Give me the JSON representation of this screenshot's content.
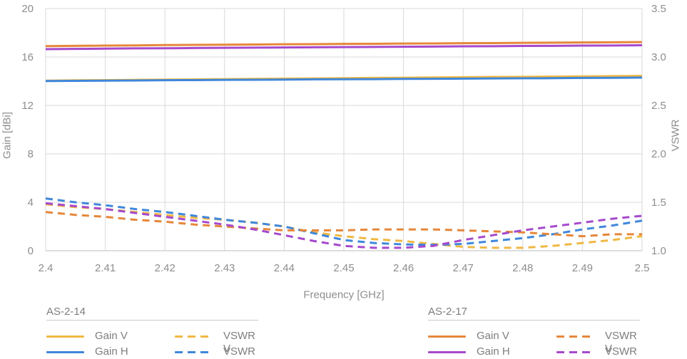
{
  "chart": {
    "y_left": {
      "title": "Gain [dBi]",
      "ticks": [
        "20",
        "16",
        "12",
        "8",
        "4",
        "0"
      ]
    },
    "y_right": {
      "title": "VSWR",
      "ticks": [
        "3.5",
        "3.0",
        "2.5",
        "2.0",
        "1.5",
        "1.0"
      ]
    },
    "x_axis": {
      "title": "Frequency [GHz]",
      "ticks": [
        "2.4",
        "2.41",
        "2.42",
        "2.43",
        "2.44",
        "2.45",
        "2.46",
        "2.47",
        "2.48",
        "2.49",
        "2.5"
      ]
    }
  },
  "colors": {
    "yellow": "#F0B843",
    "blue": "#3F87DB",
    "orange": "#E6873B",
    "purple": "#A649CC",
    "grid": "#D9D9D9",
    "axis_line": "#BDBDBD",
    "tick_text": "#8E8E8E"
  },
  "chart_data": {
    "type": "line",
    "xlabel": "Frequency [GHz]",
    "ylabel_left": "Gain [dBi]",
    "ylabel_right": "VSWR",
    "xlim": [
      2.4,
      2.5
    ],
    "gain_ylim": [
      0,
      20
    ],
    "vswr_ylim": [
      1.0,
      3.5
    ],
    "grid": true,
    "legend_position": "bottom",
    "x": [
      2.4,
      2.405,
      2.41,
      2.415,
      2.42,
      2.425,
      2.43,
      2.435,
      2.44,
      2.445,
      2.45,
      2.455,
      2.46,
      2.465,
      2.47,
      2.475,
      2.48,
      2.485,
      2.49,
      2.495,
      2.5
    ],
    "series": [
      {
        "name": "AS-2-14 Gain V",
        "group": "AS-2-14",
        "axis": "gain",
        "style": "solid",
        "color": "#F0B843",
        "values": [
          14.05,
          14.07,
          14.09,
          14.11,
          14.13,
          14.15,
          14.17,
          14.19,
          14.21,
          14.23,
          14.25,
          14.27,
          14.29,
          14.31,
          14.33,
          14.35,
          14.36,
          14.38,
          14.4,
          14.42,
          14.44
        ]
      },
      {
        "name": "AS-2-14 Gain H",
        "group": "AS-2-14",
        "axis": "gain",
        "style": "solid",
        "color": "#3F87DB",
        "values": [
          14.02,
          14.03,
          14.05,
          14.06,
          14.08,
          14.09,
          14.11,
          14.12,
          14.13,
          14.15,
          14.16,
          14.17,
          14.19,
          14.2,
          14.21,
          14.23,
          14.24,
          14.25,
          14.27,
          14.28,
          14.3
        ]
      },
      {
        "name": "AS-2-17 Gain V",
        "group": "AS-2-17",
        "axis": "gain",
        "style": "solid",
        "color": "#E6873B",
        "values": [
          16.9,
          16.92,
          16.94,
          16.96,
          16.98,
          17.0,
          17.01,
          17.03,
          17.05,
          17.06,
          17.08,
          17.09,
          17.11,
          17.12,
          17.14,
          17.15,
          17.17,
          17.18,
          17.2,
          17.21,
          17.23
        ]
      },
      {
        "name": "AS-2-17 Gain H",
        "group": "AS-2-17",
        "axis": "gain",
        "style": "solid",
        "color": "#A649CC",
        "values": [
          16.65,
          16.67,
          16.69,
          16.71,
          16.72,
          16.74,
          16.76,
          16.77,
          16.79,
          16.8,
          16.82,
          16.83,
          16.85,
          16.86,
          16.88,
          16.89,
          16.91,
          16.92,
          16.94,
          16.95,
          16.97
        ]
      },
      {
        "name": "AS-2-14 VSWR V",
        "group": "AS-2-14",
        "axis": "vswr",
        "style": "dashed",
        "color": "#F0B843",
        "values": [
          1.48,
          1.45,
          1.43,
          1.4,
          1.37,
          1.34,
          1.32,
          1.29,
          1.25,
          1.19,
          1.15,
          1.12,
          1.1,
          1.07,
          1.04,
          1.03,
          1.03,
          1.05,
          1.08,
          1.11,
          1.15
        ]
      },
      {
        "name": "AS-2-14 VSWR H",
        "group": "AS-2-14",
        "axis": "vswr",
        "style": "dashed",
        "color": "#3F87DB",
        "values": [
          1.54,
          1.5,
          1.47,
          1.43,
          1.4,
          1.36,
          1.32,
          1.29,
          1.25,
          1.18,
          1.11,
          1.08,
          1.065,
          1.06,
          1.07,
          1.1,
          1.13,
          1.17,
          1.22,
          1.26,
          1.31
        ]
      },
      {
        "name": "AS-2-17 VSWR V",
        "group": "AS-2-17",
        "axis": "vswr",
        "style": "dashed",
        "color": "#E6873B",
        "values": [
          1.4,
          1.37,
          1.35,
          1.32,
          1.3,
          1.27,
          1.25,
          1.23,
          1.21,
          1.21,
          1.21,
          1.22,
          1.22,
          1.22,
          1.21,
          1.2,
          1.19,
          1.17,
          1.15,
          1.17,
          1.17
        ]
      },
      {
        "name": "AS-2-17 VSWR H",
        "group": "AS-2-17",
        "axis": "vswr",
        "style": "dashed",
        "color": "#A649CC",
        "values": [
          1.49,
          1.46,
          1.43,
          1.39,
          1.35,
          1.31,
          1.27,
          1.22,
          1.16,
          1.1,
          1.05,
          1.03,
          1.03,
          1.05,
          1.11,
          1.16,
          1.21,
          1.25,
          1.29,
          1.33,
          1.36
        ]
      }
    ]
  },
  "legend": {
    "groups": [
      {
        "title": "AS-2-14",
        "items": [
          {
            "label": "Gain V",
            "style": "solid",
            "color": "#F0B843"
          },
          {
            "label": "Gain H",
            "style": "solid",
            "color": "#3F87DB"
          },
          {
            "label": "VSWR V",
            "style": "dashed",
            "color": "#F0B843"
          },
          {
            "label": "VSWR H",
            "style": "dashed",
            "color": "#3F87DB"
          }
        ]
      },
      {
        "title": "AS-2-17",
        "items": [
          {
            "label": "Gain V",
            "style": "solid",
            "color": "#E6873B"
          },
          {
            "label": "Gain H",
            "style": "solid",
            "color": "#A649CC"
          },
          {
            "label": "VSWR V",
            "style": "dashed",
            "color": "#E6873B"
          },
          {
            "label": "VSWR H",
            "style": "dashed",
            "color": "#A649CC"
          }
        ]
      }
    ]
  }
}
